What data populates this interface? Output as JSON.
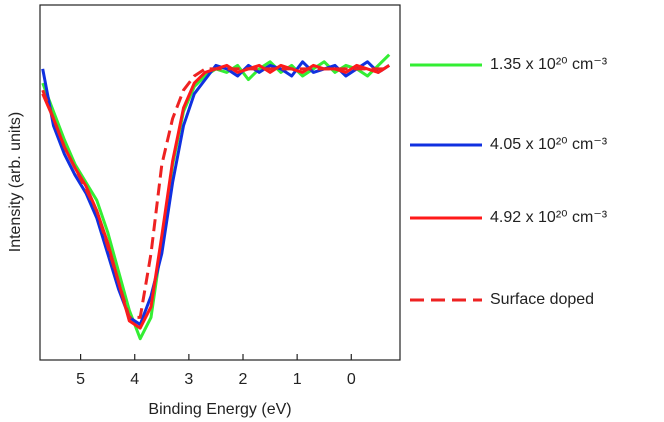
{
  "chart_data": {
    "type": "line",
    "x_label": "Binding Energy (eV)",
    "y_label": "Intensity (arb. units)",
    "x": [
      5.7,
      5.5,
      5.3,
      5.1,
      4.9,
      4.7,
      4.5,
      4.3,
      4.1,
      3.9,
      3.7,
      3.5,
      3.3,
      3.1,
      2.9,
      2.7,
      2.5,
      2.3,
      2.1,
      1.9,
      1.7,
      1.5,
      1.3,
      1.1,
      0.9,
      0.7,
      0.5,
      0.3,
      0.1,
      -0.1,
      -0.3,
      -0.5,
      -0.7
    ],
    "xlim": [
      5.75,
      -0.9
    ],
    "xticks": [
      5,
      4,
      3,
      2,
      1,
      0
    ],
    "ylim": [
      0,
      1
    ],
    "series": [
      {
        "name": "1.35 x 10²⁰  cm⁻³",
        "color": "#33ee33",
        "dash": false,
        "values": [
          0.78,
          0.7,
          0.62,
          0.55,
          0.5,
          0.45,
          0.36,
          0.25,
          0.14,
          0.06,
          0.12,
          0.33,
          0.55,
          0.7,
          0.77,
          0.8,
          0.82,
          0.81,
          0.83,
          0.79,
          0.82,
          0.84,
          0.81,
          0.83,
          0.8,
          0.82,
          0.84,
          0.81,
          0.83,
          0.82,
          0.8,
          0.83,
          0.86
        ]
      },
      {
        "name": "4.05 x 10²⁰  cm⁻³",
        "color": "#1030e0",
        "dash": false,
        "values": [
          0.82,
          0.66,
          0.58,
          0.52,
          0.47,
          0.4,
          0.3,
          0.2,
          0.12,
          0.1,
          0.18,
          0.3,
          0.5,
          0.66,
          0.75,
          0.79,
          0.83,
          0.82,
          0.8,
          0.83,
          0.81,
          0.83,
          0.82,
          0.8,
          0.84,
          0.81,
          0.82,
          0.83,
          0.8,
          0.82,
          0.84,
          0.81,
          0.83
        ]
      },
      {
        "name": "4.92 x 10²⁰  cm⁻³",
        "color": "#ff1a1a",
        "dash": false,
        "values": [
          0.75,
          0.68,
          0.6,
          0.54,
          0.49,
          0.42,
          0.33,
          0.22,
          0.11,
          0.09,
          0.15,
          0.35,
          0.56,
          0.71,
          0.78,
          0.81,
          0.82,
          0.83,
          0.81,
          0.82,
          0.83,
          0.81,
          0.83,
          0.82,
          0.81,
          0.83,
          0.82,
          0.82,
          0.81,
          0.83,
          0.82,
          0.81,
          0.83
        ]
      },
      {
        "name": "Surface doped",
        "color": "#ee2222",
        "dash": true,
        "values": [
          0.76,
          0.68,
          0.6,
          0.54,
          0.48,
          0.42,
          0.32,
          0.22,
          0.12,
          0.12,
          0.3,
          0.55,
          0.68,
          0.76,
          0.8,
          0.82,
          0.82,
          0.82,
          0.82,
          0.82,
          0.82,
          0.82,
          0.82,
          0.82,
          0.82,
          0.82,
          0.82,
          0.82,
          0.82,
          0.82,
          0.82,
          0.82,
          0.82
        ]
      }
    ]
  }
}
